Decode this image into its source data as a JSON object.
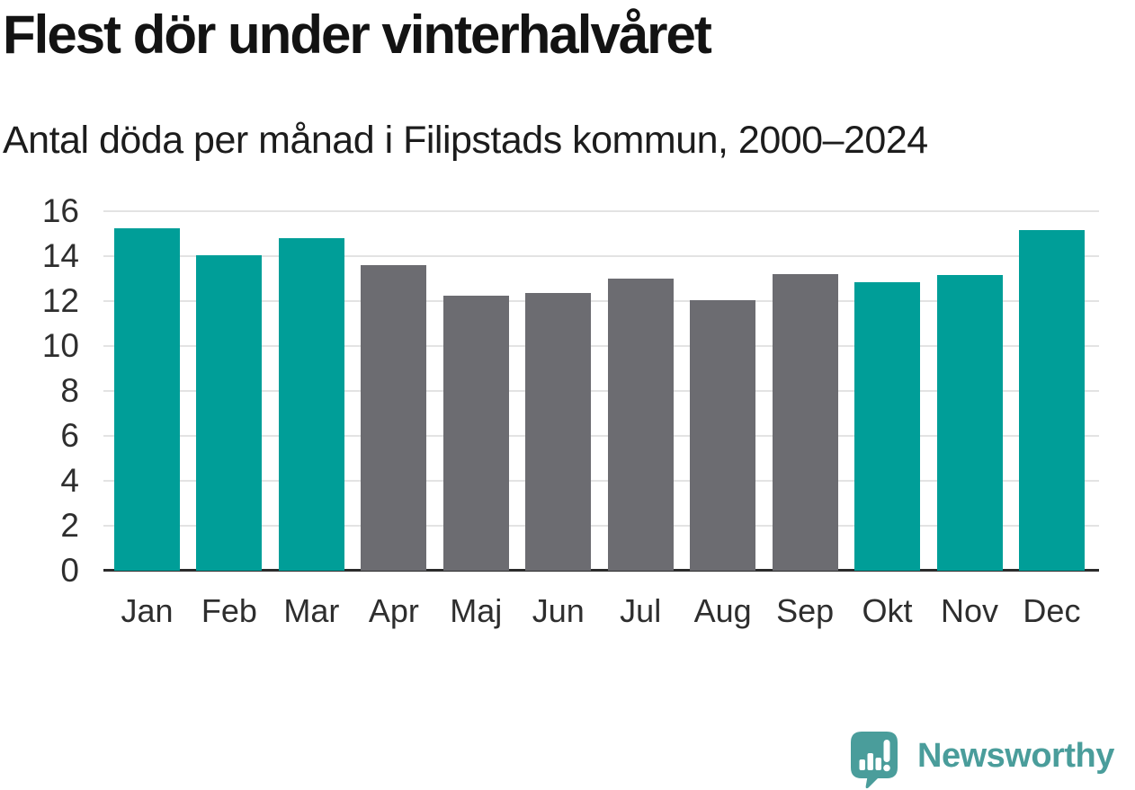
{
  "page": {
    "title": "Flest dör under vinterhalvåret",
    "subtitle": "Antal döda per månad i Filipstads kommun, 2000–2024",
    "background": "#ffffff"
  },
  "chart_data": {
    "type": "bar",
    "title": "Flest dör under vinterhalvåret",
    "subtitle": "Antal döda per månad i Filipstads kommun, 2000–2024",
    "categories": [
      "Jan",
      "Feb",
      "Mar",
      "Apr",
      "Maj",
      "Jun",
      "Jul",
      "Aug",
      "Sep",
      "Okt",
      "Nov",
      "Dec"
    ],
    "values": [
      15.25,
      14.05,
      14.8,
      13.6,
      12.25,
      12.35,
      13.0,
      12.05,
      13.2,
      12.85,
      13.15,
      15.15
    ],
    "highlighted_categories": [
      "Jan",
      "Feb",
      "Mar",
      "Okt",
      "Nov",
      "Dec"
    ],
    "highlight_color": "#009e98",
    "default_color": "#6c6c71",
    "xlabel": "",
    "ylabel": "",
    "ylim": [
      0,
      16
    ],
    "yticks": [
      0,
      2,
      4,
      6,
      8,
      10,
      12,
      14,
      16
    ],
    "grid": "horizontal",
    "gridline_color": "#e3e3e3",
    "axis_color": "#2b2b2b",
    "legend": "none"
  },
  "branding": {
    "logo_text": "Newsworthy",
    "logo_color": "#4a9d9b",
    "logo_icon": "speech-bubble-bar-chart-icon"
  }
}
